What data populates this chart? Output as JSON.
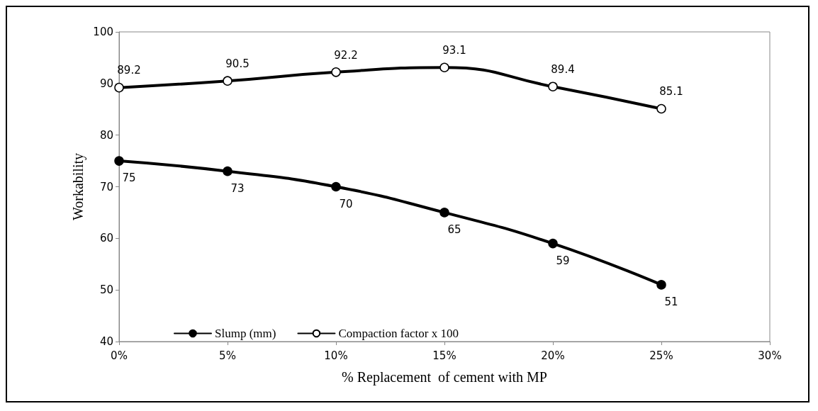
{
  "chart_data": {
    "type": "line",
    "xlabel": "% Replacement  of cement with MP",
    "ylabel": "Workability",
    "x": [
      0,
      5,
      10,
      15,
      20,
      25
    ],
    "xlim": [
      0,
      30
    ],
    "xticks": [
      {
        "value": 0,
        "label": "0%"
      },
      {
        "value": 5,
        "label": "5%"
      },
      {
        "value": 10,
        "label": "10%"
      },
      {
        "value": 15,
        "label": "15%"
      },
      {
        "value": 20,
        "label": "20%"
      },
      {
        "value": 25,
        "label": "25%"
      },
      {
        "value": 30,
        "label": "30%"
      }
    ],
    "ylim": [
      40,
      100
    ],
    "yticks": [
      40,
      50,
      60,
      70,
      80,
      90,
      100
    ],
    "series": [
      {
        "name": "Slump (mm)",
        "color": "#000000",
        "values": [
          75,
          73,
          70,
          65,
          59,
          51
        ]
      },
      {
        "name": "Compaction factor x 100",
        "color": "#000000",
        "values": [
          89.2,
          90.5,
          92.2,
          93.1,
          89.4,
          85.1
        ]
      }
    ],
    "marker": "circle",
    "data_labels": true,
    "grid": false,
    "legend": "bottom"
  }
}
